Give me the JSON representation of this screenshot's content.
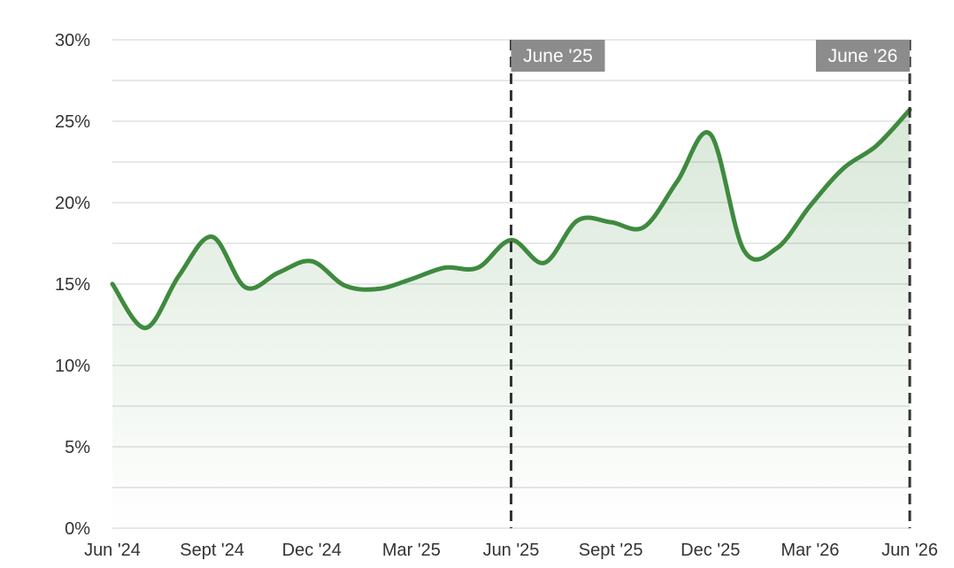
{
  "chart_data": {
    "type": "area",
    "title": "",
    "xlabel": "",
    "ylabel": "",
    "x": [
      "2024-06",
      "2024-07",
      "2024-08",
      "2024-09",
      "2024-10",
      "2024-11",
      "2024-12",
      "2025-01",
      "2025-02",
      "2025-03",
      "2025-04",
      "2025-05",
      "2025-06",
      "2025-07",
      "2025-08",
      "2025-09",
      "2025-10",
      "2025-11",
      "2025-12",
      "2026-01",
      "2026-02",
      "2026-03",
      "2026-04",
      "2026-05",
      "2026-06"
    ],
    "series": [
      {
        "name": "",
        "values": [
          15.0,
          12.3,
          15.5,
          17.9,
          14.8,
          15.7,
          16.4,
          14.9,
          14.7,
          15.3,
          16.0,
          16.0,
          17.7,
          16.3,
          18.9,
          18.8,
          18.5,
          21.3,
          24.2,
          17.1,
          17.2,
          19.8,
          22.1,
          23.5,
          25.7
        ]
      }
    ],
    "ylim": [
      0,
      30
    ],
    "y_ticks": [
      {
        "value": 0,
        "label": "0%"
      },
      {
        "value": 5,
        "label": "5%"
      },
      {
        "value": 10,
        "label": "10%"
      },
      {
        "value": 15,
        "label": "15%"
      },
      {
        "value": 20,
        "label": "20%"
      },
      {
        "value": 25,
        "label": "25%"
      },
      {
        "value": 30,
        "label": "30%"
      }
    ],
    "x_ticks": [
      {
        "at": "2024-06",
        "label": "Jun '24"
      },
      {
        "at": "2024-09",
        "label": "Sept '24"
      },
      {
        "at": "2024-12",
        "label": "Dec '24"
      },
      {
        "at": "2025-03",
        "label": "Mar '25"
      },
      {
        "at": "2025-06",
        "label": "Jun '25"
      },
      {
        "at": "2025-09",
        "label": "Sept '25"
      },
      {
        "at": "2025-12",
        "label": "Dec '25"
      },
      {
        "at": "2026-03",
        "label": "Mar '26"
      },
      {
        "at": "2026-06",
        "label": "Jun '26"
      }
    ],
    "markers": [
      {
        "at": "2025-06",
        "label": "June '25"
      },
      {
        "at": "2026-06",
        "label": "June '26"
      }
    ],
    "grid": true,
    "legend": "none",
    "colors": {
      "line": "#3f8a3f",
      "fill": "#3f8a3f",
      "grid": "#d9d9d9",
      "marker_line": "#333333",
      "marker_label_bg": "#8c8c8c"
    }
  }
}
